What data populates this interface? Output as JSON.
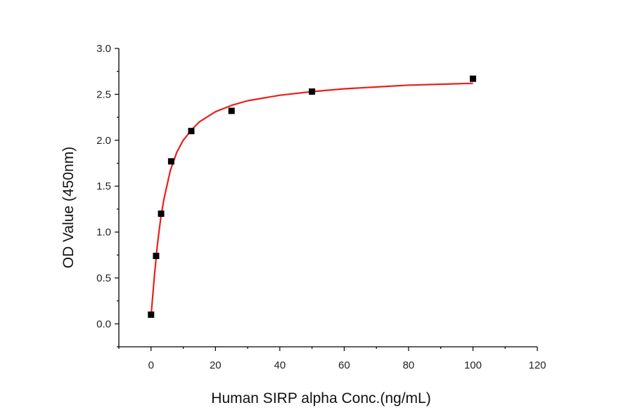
{
  "chart_data": {
    "type": "scatter",
    "title": "",
    "xlabel": "Human SIRP alpha Conc.(ng/mL)",
    "ylabel": "OD Value (450nm)",
    "xlim": [
      -10,
      120
    ],
    "ylim": [
      -0.25,
      3.0
    ],
    "x_ticks": [
      0,
      20,
      40,
      60,
      80,
      100,
      120
    ],
    "y_ticks": [
      0.0,
      0.5,
      1.0,
      1.5,
      2.0,
      2.5,
      3.0
    ],
    "x_tick_labels": [
      "0",
      "20",
      "40",
      "60",
      "80",
      "100",
      "120"
    ],
    "y_tick_labels": [
      "0.0",
      "0.5",
      "1.0",
      "1.5",
      "2.0",
      "2.5",
      "3.0"
    ],
    "grid": false,
    "legend": "none",
    "series": [
      {
        "type": "scatter",
        "marker": "square",
        "color": "#000000",
        "x": [
          0,
          1.5625,
          3.125,
          6.25,
          12.5,
          25,
          50,
          100
        ],
        "y": [
          0.1,
          0.74,
          1.2,
          1.77,
          2.1,
          2.32,
          2.53,
          2.67
        ]
      },
      {
        "type": "line",
        "fit": "saturation curve",
        "color": "#e8201a",
        "x": [
          0,
          1,
          2,
          3,
          4,
          6,
          8,
          10,
          12.5,
          15,
          20,
          25,
          30,
          40,
          50,
          60,
          70,
          80,
          90,
          100
        ],
        "y": [
          0.09,
          0.5,
          0.87,
          1.15,
          1.36,
          1.67,
          1.87,
          2.0,
          2.11,
          2.2,
          2.31,
          2.38,
          2.43,
          2.49,
          2.53,
          2.56,
          2.58,
          2.6,
          2.61,
          2.62
        ]
      }
    ]
  }
}
